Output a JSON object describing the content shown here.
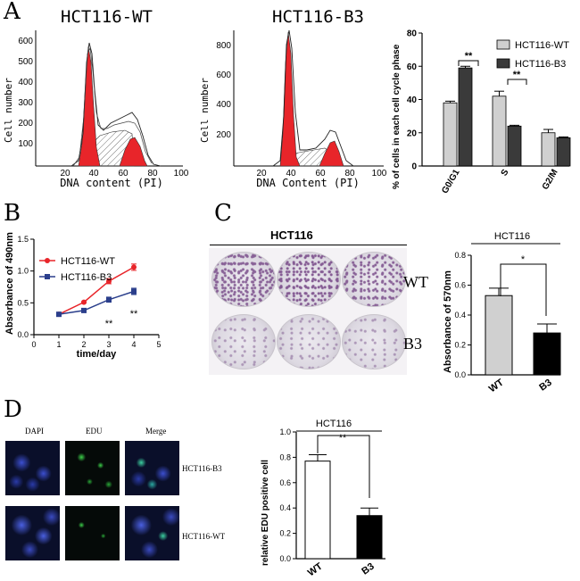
{
  "panels": {
    "a": "A",
    "b": "B",
    "c": "C",
    "d": "D"
  },
  "flow": {
    "wt": {
      "title": "HCT116-WT",
      "ylabel": "Cell number",
      "xlabel": "DNA content (PI)",
      "yticks": [
        "100",
        "200",
        "300",
        "400",
        "500",
        "600"
      ],
      "xticks": [
        "20",
        "40",
        "60",
        "80",
        "100"
      ]
    },
    "b3": {
      "title": "HCT116-B3",
      "ylabel": "Cell number",
      "xlabel": "DNA Content (PI)",
      "yticks": [
        "200",
        "400",
        "600",
        "800"
      ],
      "xticks": [
        "20",
        "40",
        "60",
        "80",
        "100"
      ]
    }
  },
  "colors": {
    "wt": "#d0d0d0",
    "b3": "#3a3a3a",
    "red": "#e8252a",
    "blue": "#2b3f8c",
    "white": "#ffffff",
    "black": "#000000"
  },
  "chart_data": [
    {
      "id": "cell-cycle",
      "type": "bar",
      "ylabel": "% of cells in each cell cycle phase",
      "categories": [
        "G0/G1",
        "S",
        "G2/M"
      ],
      "ylim": [
        0,
        80
      ],
      "yticks": [
        "0",
        "20",
        "40",
        "60",
        "80"
      ],
      "legend": "top-right",
      "series": [
        {
          "name": "HCT116-WT",
          "values": [
            38,
            42,
            20
          ],
          "errors": [
            1,
            3,
            2
          ]
        },
        {
          "name": "HCT116-B3",
          "values": [
            59,
            24,
            17
          ],
          "errors": [
            1,
            0.5,
            0.5
          ]
        }
      ],
      "annotations": [
        "**",
        "**"
      ]
    },
    {
      "id": "mtt",
      "type": "line",
      "xlabel": "time/day",
      "ylabel": "Absorbance of 490nm",
      "x": [
        1,
        2,
        3,
        4
      ],
      "xlim": [
        0,
        5
      ],
      "ylim": [
        0,
        1.5
      ],
      "xticks": [
        "0",
        "1",
        "2",
        "3",
        "4",
        "5"
      ],
      "yticks": [
        "0.0",
        "0.5",
        "1.0",
        "1.5"
      ],
      "legend": "top-left",
      "series": [
        {
          "name": "HCT116-WT",
          "values": [
            0.32,
            0.51,
            0.84,
            1.06
          ],
          "errors": [
            0.01,
            0.01,
            0.04,
            0.05
          ]
        },
        {
          "name": "HCT116-B3",
          "values": [
            0.32,
            0.38,
            0.55,
            0.68
          ],
          "errors": [
            0.01,
            0.01,
            0.04,
            0.05
          ]
        }
      ],
      "annotations": [
        "**",
        "**"
      ]
    },
    {
      "id": "colony",
      "type": "bar",
      "title": "HCT116",
      "ylabel": "Absorbance of 570nm",
      "categories": [
        "WT",
        "B3"
      ],
      "ylim": [
        0,
        0.8
      ],
      "yticks": [
        "0.0",
        "0.2",
        "0.4",
        "0.6",
        "0.8"
      ],
      "series": [
        {
          "values": [
            0.53,
            0.28
          ],
          "errors": [
            0.05,
            0.06
          ]
        }
      ],
      "annotations": [
        "*"
      ]
    },
    {
      "id": "edu",
      "type": "bar",
      "title": "HCT116",
      "ylabel": "relative EDU positive cell",
      "categories": [
        "WT",
        "B3"
      ],
      "ylim": [
        0,
        1.0
      ],
      "yticks": [
        "0.0",
        "0.2",
        "0.4",
        "0.6",
        "0.8",
        "1.0"
      ],
      "series": [
        {
          "values": [
            0.77,
            0.34
          ],
          "errors": [
            0.05,
            0.06
          ]
        }
      ],
      "annotations": [
        "**"
      ]
    }
  ],
  "colony_plates": {
    "title": "HCT116",
    "rows": [
      "WT",
      "B3"
    ]
  },
  "microscopy": {
    "columns": [
      "DAPI",
      "EDU",
      "Merge"
    ],
    "rows": [
      "HCT116-B3",
      "HCT116-WT"
    ]
  }
}
